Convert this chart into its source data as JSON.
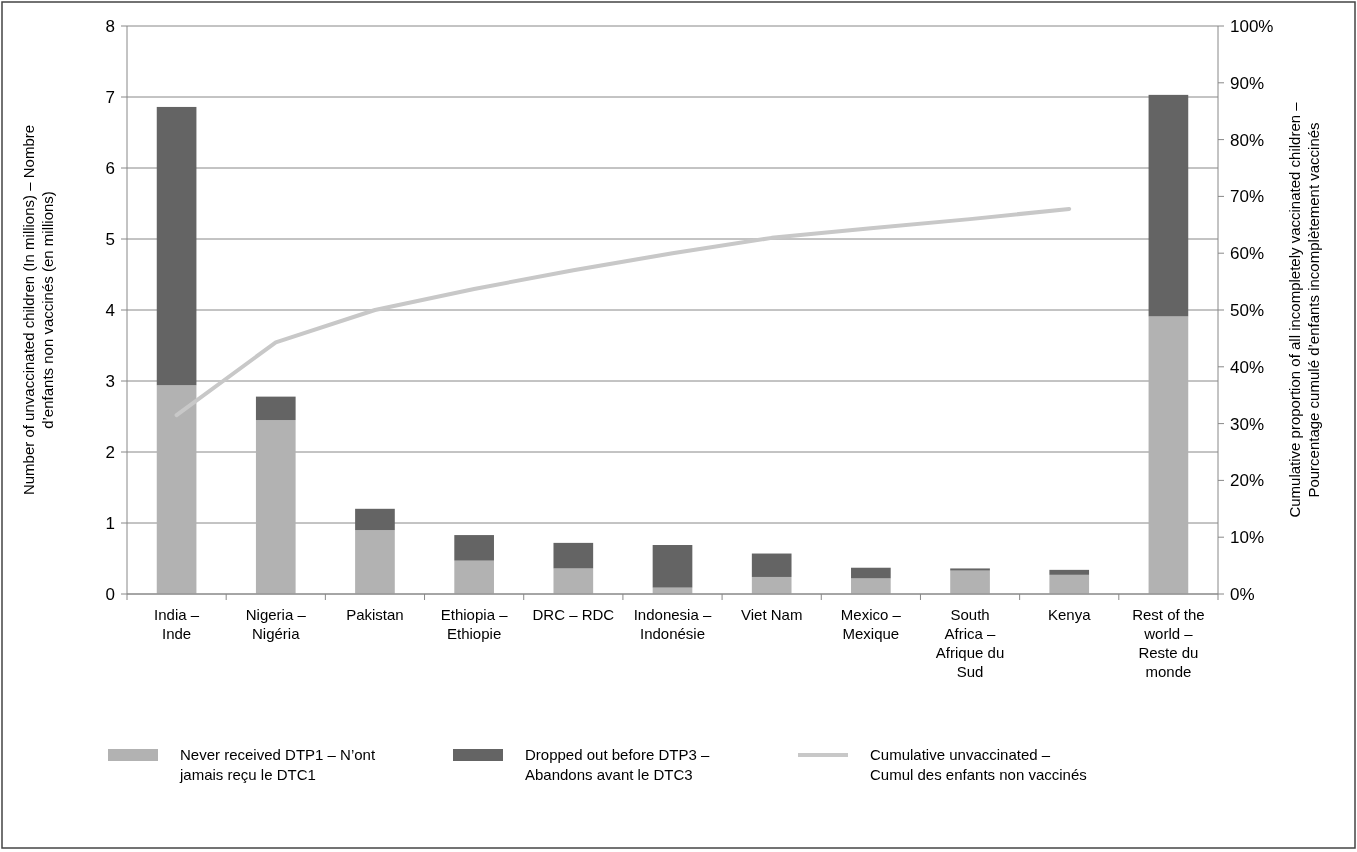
{
  "chart_data": {
    "type": "bar",
    "stacked": true,
    "categories": [
      "India – Inde",
      "Nigeria – Nigéria",
      "Pakistan",
      "Ethiopia – Ethiopie",
      "DRC – RDC",
      "Indonesia – Indonésie",
      "Viet Nam",
      "Mexico – Mexique",
      "South Africa – Afrique du Sud",
      "Kenya",
      "Rest of the world – Reste du monde"
    ],
    "series": [
      {
        "name": "Never received DTP1 – N’ont jamais reçu le DTC1",
        "color": "#b2b2b2",
        "values": [
          2.94,
          2.45,
          0.9,
          0.47,
          0.36,
          0.09,
          0.24,
          0.22,
          0.33,
          0.27,
          3.91
        ]
      },
      {
        "name": "Dropped out before DTP3 – Abandons avant le DTC3",
        "color": "#646464",
        "values": [
          3.92,
          0.33,
          0.3,
          0.36,
          0.36,
          0.6,
          0.33,
          0.15,
          0.03,
          0.07,
          3.12
        ]
      },
      {
        "name": "Cumulative unvaccinated – Cumul des enfants non vaccinés",
        "type": "line",
        "axis": "y2",
        "color": "#c8c8c8",
        "values": [
          31.5,
          44.3,
          50,
          53.7,
          57,
          60,
          62.7,
          64.4,
          66,
          67.8,
          null
        ]
      }
    ],
    "ylabel": "Number of unvaccinated children (In millions) – Nombre d’enfants non vaccinés (en millions)",
    "y2label": "Cumulative proportion of all incompletely vaccinated children – Pourcentage cumulé d’enfants incomplètement vaccinés",
    "ylim": [
      0,
      8
    ],
    "yticks": [
      0,
      1,
      2,
      3,
      4,
      5,
      6,
      7,
      8
    ],
    "y2lim": [
      0,
      100
    ],
    "y2ticks": [
      {
        "value": 0,
        "label": "0%"
      },
      {
        "value": 10,
        "label": "10%"
      },
      {
        "value": 20,
        "label": "20%"
      },
      {
        "value": 30,
        "label": "30%"
      },
      {
        "value": 40,
        "label": "40%"
      },
      {
        "value": 50,
        "label": "50%"
      },
      {
        "value": 60,
        "label": "60%"
      },
      {
        "value": 70,
        "label": "70%"
      },
      {
        "value": 80,
        "label": "80%"
      },
      {
        "value": 90,
        "label": "90%"
      },
      {
        "value": 100,
        "label": "100%"
      }
    ],
    "grid": "y",
    "legend": "bottom",
    "marker": "none"
  }
}
